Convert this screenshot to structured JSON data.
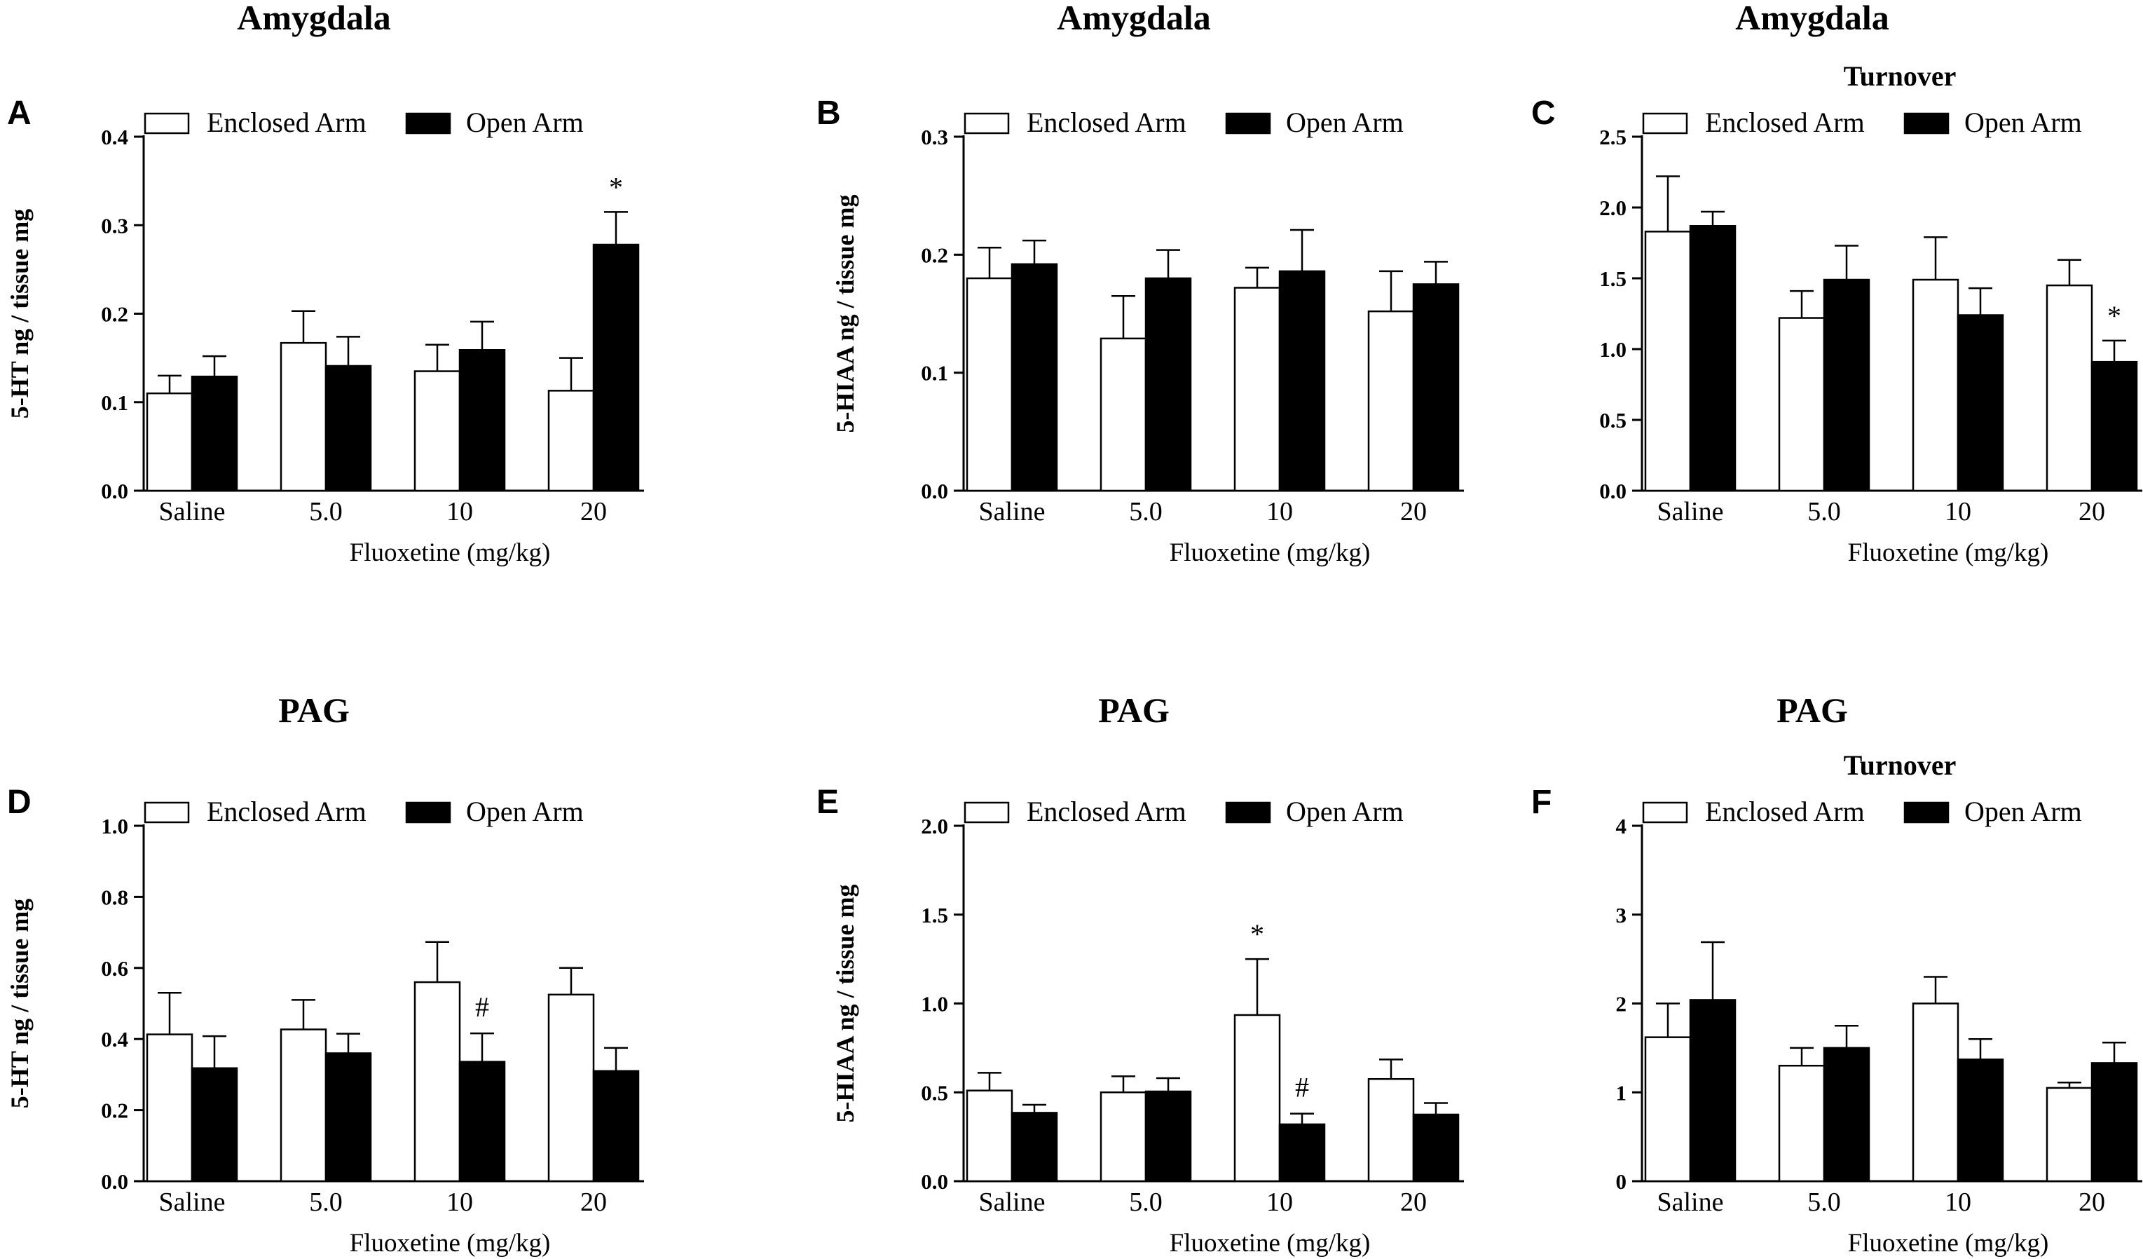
{
  "colors": {
    "enclosed": "#ffffff",
    "open": "#000000",
    "ink": "#000000"
  },
  "chart_data": [
    {
      "panel": "A",
      "type": "bar",
      "title": "Amygdala",
      "subtitle": "",
      "ylabel": "5-HT ng / tissue mg",
      "xlabel": "Fluoxetine (mg/kg)",
      "categories": [
        "Saline",
        "5.0",
        "10",
        "20"
      ],
      "ylim": [
        0,
        0.4
      ],
      "yticks": [
        0.0,
        0.1,
        0.2,
        0.3,
        0.4
      ],
      "ytick_labels": [
        "0.0",
        "0.1",
        "0.2",
        "0.3",
        "0.4"
      ],
      "legend": [
        "Enclosed Arm",
        "Open Arm"
      ],
      "series": [
        {
          "name": "Enclosed Arm",
          "values": [
            0.11,
            0.167,
            0.135,
            0.113
          ],
          "errors": [
            0.02,
            0.036,
            0.03,
            0.037
          ]
        },
        {
          "name": "Open Arm",
          "values": [
            0.129,
            0.141,
            0.159,
            0.278
          ],
          "errors": [
            0.023,
            0.033,
            0.032,
            0.037
          ]
        }
      ],
      "annotations": [
        {
          "series": 1,
          "category": 3,
          "text": "*"
        }
      ]
    },
    {
      "panel": "B",
      "type": "bar",
      "title": "Amygdala",
      "subtitle": "",
      "ylabel": "5-HIAA ng / tissue mg",
      "xlabel": "Fluoxetine (mg/kg)",
      "categories": [
        "Saline",
        "5.0",
        "10",
        "20"
      ],
      "ylim": [
        0,
        0.3
      ],
      "yticks": [
        0.0,
        0.1,
        0.2,
        0.3
      ],
      "ytick_labels": [
        "0.0",
        "0.1",
        "0.2",
        "0.3"
      ],
      "legend": [
        "Enclosed Arm",
        "Open Arm"
      ],
      "series": [
        {
          "name": "Enclosed Arm",
          "values": [
            0.18,
            0.129,
            0.172,
            0.152
          ],
          "errors": [
            0.026,
            0.036,
            0.017,
            0.034
          ]
        },
        {
          "name": "Open Arm",
          "values": [
            0.192,
            0.18,
            0.186,
            0.175
          ],
          "errors": [
            0.02,
            0.024,
            0.035,
            0.019
          ]
        }
      ],
      "annotations": []
    },
    {
      "panel": "C",
      "type": "bar",
      "title": "Amygdala",
      "subtitle": "Turnover",
      "ylabel": "",
      "xlabel": "Fluoxetine (mg/kg)",
      "categories": [
        "Saline",
        "5.0",
        "10",
        "20"
      ],
      "ylim": [
        0,
        2.5
      ],
      "yticks": [
        0.0,
        0.5,
        1.0,
        1.5,
        2.0,
        2.5
      ],
      "ytick_labels": [
        "0.0",
        "0.5",
        "1.0",
        "1.5",
        "2.0",
        "2.5"
      ],
      "legend": [
        "Enclosed Arm",
        "Open Arm"
      ],
      "series": [
        {
          "name": "Enclosed Arm",
          "values": [
            1.83,
            1.22,
            1.49,
            1.45
          ],
          "errors": [
            0.39,
            0.19,
            0.3,
            0.18
          ]
        },
        {
          "name": "Open Arm",
          "values": [
            1.87,
            1.49,
            1.24,
            0.91
          ],
          "errors": [
            0.1,
            0.24,
            0.19,
            0.15
          ]
        }
      ],
      "annotations": [
        {
          "series": 1,
          "category": 3,
          "text": "*"
        }
      ]
    },
    {
      "panel": "D",
      "type": "bar",
      "title": "PAG",
      "subtitle": "",
      "ylabel": "5-HT ng / tissue mg",
      "xlabel": "Fluoxetine (mg/kg)",
      "categories": [
        "Saline",
        "5.0",
        "10",
        "20"
      ],
      "ylim": [
        0,
        1.0
      ],
      "yticks": [
        0.0,
        0.2,
        0.4,
        0.6,
        0.8,
        1.0
      ],
      "ytick_labels": [
        "0.0",
        "0.2",
        "0.4",
        "0.6",
        "0.8",
        "1.0"
      ],
      "legend": [
        "Enclosed Arm",
        "Open Arm"
      ],
      "series": [
        {
          "name": "Enclosed Arm",
          "values": [
            0.413,
            0.427,
            0.56,
            0.525
          ],
          "errors": [
            0.117,
            0.083,
            0.113,
            0.075
          ]
        },
        {
          "name": "Open Arm",
          "values": [
            0.318,
            0.36,
            0.336,
            0.31
          ],
          "errors": [
            0.09,
            0.055,
            0.08,
            0.065
          ]
        }
      ],
      "annotations": [
        {
          "series": 1,
          "category": 2,
          "text": "#"
        }
      ]
    },
    {
      "panel": "E",
      "type": "bar",
      "title": "PAG",
      "subtitle": "",
      "ylabel": "5-HIAA ng / tissue mg",
      "xlabel": "Fluoxetine (mg/kg)",
      "categories": [
        "Saline",
        "5.0",
        "10",
        "20"
      ],
      "ylim": [
        0,
        2.0
      ],
      "yticks": [
        0.0,
        0.5,
        1.0,
        1.5,
        2.0
      ],
      "ytick_labels": [
        "0.0",
        "0.5",
        "1.0",
        "1.5",
        "2.0"
      ],
      "legend": [
        "Enclosed Arm",
        "Open Arm"
      ],
      "series": [
        {
          "name": "Enclosed Arm",
          "values": [
            0.51,
            0.5,
            0.935,
            0.575
          ],
          "errors": [
            0.1,
            0.09,
            0.315,
            0.11
          ]
        },
        {
          "name": "Open Arm",
          "values": [
            0.385,
            0.505,
            0.32,
            0.375
          ],
          "errors": [
            0.045,
            0.075,
            0.06,
            0.065
          ]
        }
      ],
      "annotations": [
        {
          "series": 0,
          "category": 2,
          "text": "*"
        },
        {
          "series": 1,
          "category": 2,
          "text": "#"
        }
      ]
    },
    {
      "panel": "F",
      "type": "bar",
      "title": "PAG",
      "subtitle": "Turnover",
      "ylabel": "",
      "xlabel": "Fluoxetine (mg/kg)",
      "categories": [
        "Saline",
        "5.0",
        "10",
        "20"
      ],
      "ylim": [
        0,
        4
      ],
      "yticks": [
        0,
        1,
        2,
        3,
        4
      ],
      "ytick_labels": [
        "0",
        "1",
        "2",
        "3",
        "4"
      ],
      "legend": [
        "Enclosed Arm",
        "Open Arm"
      ],
      "series": [
        {
          "name": "Enclosed Arm",
          "values": [
            1.62,
            1.3,
            2.0,
            1.05
          ],
          "errors": [
            0.38,
            0.2,
            0.3,
            0.06
          ]
        },
        {
          "name": "Open Arm",
          "values": [
            2.04,
            1.5,
            1.37,
            1.33
          ],
          "errors": [
            0.65,
            0.25,
            0.23,
            0.23
          ]
        }
      ],
      "annotations": []
    }
  ]
}
